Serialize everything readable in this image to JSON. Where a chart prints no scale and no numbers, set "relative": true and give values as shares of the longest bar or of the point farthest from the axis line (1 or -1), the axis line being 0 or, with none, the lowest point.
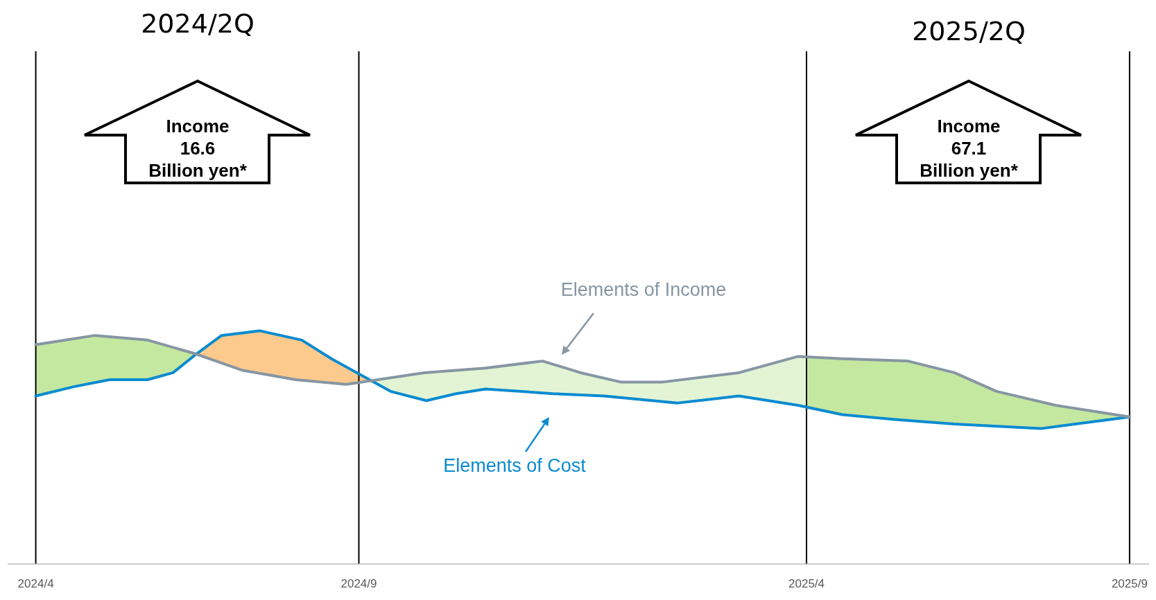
{
  "chart_data": {
    "type": "line",
    "relative": true,
    "marker": "none",
    "line_style": "solid",
    "xlim": [
      "2024-03-19",
      "2025-09-10"
    ],
    "xticks": [
      {
        "value": "2024-04",
        "label": "2024/4"
      },
      {
        "value": "2024-09",
        "label": "2024/9"
      },
      {
        "value": "2025-04",
        "label": "2025/4"
      },
      {
        "value": "2025-09",
        "label": "2025/9"
      }
    ],
    "series": [
      {
        "name": "Elements of Income",
        "color": "#8696a3",
        "x": [
          "2024-04-01",
          "2024-04-29",
          "2024-05-24",
          "2024-06-16",
          "2024-07-08",
          "2024-08-02",
          "2024-08-26",
          "2024-10-02",
          "2024-10-31",
          "2024-11-27",
          "2024-12-15",
          "2025-01-03",
          "2025-01-23",
          "2025-02-28",
          "2025-03-28",
          "2025-04-18",
          "2025-05-19",
          "2025-06-10",
          "2025-06-30",
          "2025-07-28",
          "2025-09-01"
        ],
        "values": [
          0.94,
          0.98,
          0.96,
          0.9,
          0.83,
          0.79,
          0.77,
          0.82,
          0.84,
          0.87,
          0.82,
          0.78,
          0.78,
          0.82,
          0.89,
          0.88,
          0.87,
          0.82,
          0.74,
          0.68,
          0.63
        ]
      },
      {
        "name": "Elements of Cost",
        "color": "#0a8bd0",
        "x": [
          "2024-04-01",
          "2024-04-19",
          "2024-05-06",
          "2024-05-24",
          "2024-06-05",
          "2024-06-16",
          "2024-06-28",
          "2024-07-16",
          "2024-08-05",
          "2024-08-19",
          "2024-09-02",
          "2024-09-16",
          "2024-10-03",
          "2024-10-17",
          "2024-10-31",
          "2024-12-02",
          "2024-12-26",
          "2025-01-30",
          "2025-02-28",
          "2025-03-28",
          "2025-04-18",
          "2025-05-12",
          "2025-06-10",
          "2025-07-21",
          "2025-09-01"
        ],
        "values": [
          0.72,
          0.76,
          0.79,
          0.79,
          0.82,
          0.9,
          0.98,
          1,
          0.96,
          0.88,
          0.81,
          0.74,
          0.7,
          0.73,
          0.75,
          0.73,
          0.72,
          0.69,
          0.72,
          0.68,
          0.64,
          0.62,
          0.6,
          0.58,
          0.63
        ]
      }
    ],
    "ref_lines": [
      {
        "axis": "x",
        "value": "2024-04",
        "color": "#000000"
      },
      {
        "axis": "x",
        "value": "2024-09",
        "color": "#000000"
      },
      {
        "axis": "x",
        "value": "2025-04",
        "color": "#000000"
      },
      {
        "axis": "x",
        "value": "2025-09",
        "color": "#000000"
      }
    ],
    "annotations": [
      "2024/2Q",
      "2025/2Q",
      "Income\n16.6\nBillion yen*",
      "Income\n67.1\nBillion yen*"
    ]
  }
}
